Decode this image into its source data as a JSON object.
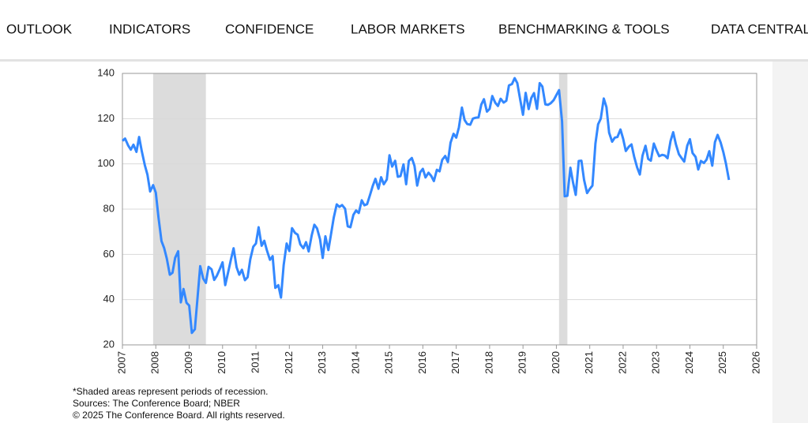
{
  "nav": {
    "items": [
      "OUTLOOK",
      "INDICATORS",
      "CONFIDENCE",
      "LABOR MARKETS",
      "BENCHMARKING & TOOLS",
      "DATA CENTRAL"
    ]
  },
  "chart_data": {
    "type": "line",
    "color": "#3388ff",
    "grid": true,
    "recession_color": "#dcdcdc",
    "recessions": [
      [
        2007.92,
        2009.5
      ],
      [
        2020.08,
        2020.33
      ]
    ],
    "xlim": [
      2007,
      2026
    ],
    "xticks": [
      2007,
      2008,
      2009,
      2010,
      2011,
      2012,
      2013,
      2014,
      2015,
      2016,
      2017,
      2018,
      2019,
      2020,
      2021,
      2022,
      2023,
      2024,
      2025,
      2026
    ],
    "ylim": [
      20,
      140
    ],
    "yticks": [
      20,
      40,
      60,
      80,
      100,
      120,
      140
    ],
    "x": [
      2007.0,
      2007.08,
      2007.17,
      2007.25,
      2007.33,
      2007.42,
      2007.5,
      2007.58,
      2007.67,
      2007.75,
      2007.83,
      2007.92,
      2008.0,
      2008.08,
      2008.17,
      2008.25,
      2008.33,
      2008.42,
      2008.5,
      2008.58,
      2008.67,
      2008.75,
      2008.83,
      2008.92,
      2009.0,
      2009.08,
      2009.17,
      2009.25,
      2009.33,
      2009.42,
      2009.5,
      2009.58,
      2009.67,
      2009.75,
      2009.83,
      2009.92,
      2010.0,
      2010.08,
      2010.17,
      2010.25,
      2010.33,
      2010.42,
      2010.5,
      2010.58,
      2010.67,
      2010.75,
      2010.83,
      2010.92,
      2011.0,
      2011.08,
      2011.17,
      2011.25,
      2011.33,
      2011.42,
      2011.5,
      2011.58,
      2011.67,
      2011.75,
      2011.83,
      2011.92,
      2012.0,
      2012.08,
      2012.17,
      2012.25,
      2012.33,
      2012.42,
      2012.5,
      2012.58,
      2012.67,
      2012.75,
      2012.83,
      2012.92,
      2013.0,
      2013.08,
      2013.17,
      2013.25,
      2013.33,
      2013.42,
      2013.5,
      2013.58,
      2013.67,
      2013.75,
      2013.83,
      2013.92,
      2014.0,
      2014.08,
      2014.17,
      2014.25,
      2014.33,
      2014.42,
      2014.5,
      2014.58,
      2014.67,
      2014.75,
      2014.83,
      2014.92,
      2015.0,
      2015.08,
      2015.17,
      2015.25,
      2015.33,
      2015.42,
      2015.5,
      2015.58,
      2015.67,
      2015.75,
      2015.83,
      2015.92,
      2016.0,
      2016.08,
      2016.17,
      2016.25,
      2016.33,
      2016.42,
      2016.5,
      2016.58,
      2016.67,
      2016.75,
      2016.83,
      2016.92,
      2017.0,
      2017.08,
      2017.17,
      2017.25,
      2017.33,
      2017.42,
      2017.5,
      2017.58,
      2017.67,
      2017.75,
      2017.83,
      2017.92,
      2018.0,
      2018.08,
      2018.17,
      2018.25,
      2018.33,
      2018.42,
      2018.5,
      2018.58,
      2018.67,
      2018.75,
      2018.83,
      2018.92,
      2019.0,
      2019.08,
      2019.17,
      2019.25,
      2019.33,
      2019.42,
      2019.5,
      2019.58,
      2019.67,
      2019.75,
      2019.83,
      2019.92,
      2020.0,
      2020.08,
      2020.17,
      2020.25,
      2020.33,
      2020.42,
      2020.5,
      2020.58,
      2020.67,
      2020.75,
      2020.83,
      2020.92,
      2021.0,
      2021.08,
      2021.17,
      2021.25,
      2021.33,
      2021.42,
      2021.5,
      2021.58,
      2021.67,
      2021.75,
      2021.83,
      2021.92,
      2022.0,
      2022.08,
      2022.17,
      2022.25,
      2022.33,
      2022.42,
      2022.5,
      2022.58,
      2022.67,
      2022.75,
      2022.83,
      2022.92,
      2023.0,
      2023.08,
      2023.17,
      2023.25,
      2023.33,
      2023.42,
      2023.5,
      2023.58,
      2023.67,
      2023.75,
      2023.83,
      2023.92,
      2024.0,
      2024.08,
      2024.17,
      2024.25,
      2024.33,
      2024.42,
      2024.5,
      2024.58,
      2024.67,
      2024.75,
      2024.83,
      2024.92,
      2025.0,
      2025.08,
      2025.17
    ],
    "values": [
      110.2,
      111.2,
      108.2,
      106.3,
      108.5,
      105.3,
      111.9,
      105.6,
      99.5,
      95.2,
      87.8,
      90.6,
      87.3,
      76.4,
      65.9,
      62.8,
      58.1,
      51.0,
      51.9,
      58.5,
      61.4,
      38.8,
      44.7,
      38.6,
      37.4,
      25.3,
      26.9,
      40.8,
      54.8,
      49.3,
      47.4,
      54.5,
      53.4,
      48.7,
      50.6,
      53.6,
      56.5,
      46.4,
      52.3,
      57.7,
      62.7,
      54.3,
      51.0,
      53.2,
      48.6,
      49.9,
      57.8,
      63.4,
      64.8,
      72.0,
      63.8,
      66.0,
      61.7,
      57.6,
      59.2,
      45.2,
      46.4,
      40.9,
      55.2,
      64.8,
      61.5,
      71.6,
      69.5,
      68.7,
      64.4,
      62.7,
      65.4,
      61.3,
      68.4,
      73.1,
      71.5,
      66.7,
      58.4,
      68.0,
      61.9,
      69.0,
      76.2,
      82.1,
      81.0,
      81.8,
      80.2,
      72.4,
      72.0,
      77.5,
      79.4,
      78.3,
      83.9,
      81.7,
      82.2,
      86.4,
      90.3,
      93.4,
      89.0,
      94.1,
      91.0,
      93.1,
      103.8,
      98.8,
      101.4,
      94.3,
      94.6,
      99.8,
      91.0,
      101.3,
      102.6,
      99.1,
      90.4,
      96.3,
      97.8,
      94.0,
      96.1,
      94.7,
      92.4,
      97.4,
      96.7,
      101.8,
      103.5,
      100.8,
      109.4,
      113.3,
      111.6,
      116.1,
      124.9,
      119.4,
      117.6,
      117.3,
      120.0,
      120.4,
      120.6,
      126.2,
      128.6,
      123.1,
      124.3,
      130.0,
      127.0,
      125.6,
      128.8,
      127.1,
      127.9,
      134.7,
      135.3,
      137.9,
      135.7,
      128.1,
      121.7,
      131.4,
      124.2,
      129.2,
      131.3,
      124.3,
      135.7,
      134.2,
      126.3,
      126.1,
      126.8,
      128.2,
      130.4,
      132.6,
      118.8,
      85.7,
      85.9,
      98.3,
      91.7,
      86.3,
      101.3,
      101.4,
      92.9,
      87.1,
      88.9,
      90.4,
      109.0,
      117.5,
      120.0,
      128.9,
      125.1,
      113.8,
      109.8,
      111.6,
      111.9,
      115.2,
      111.1,
      105.7,
      107.6,
      108.6,
      103.2,
      98.4,
      95.3,
      103.6,
      108.0,
      102.2,
      101.4,
      109.0,
      106.0,
      103.4,
      104.0,
      103.7,
      102.5,
      110.1,
      114.0,
      108.7,
      104.3,
      102.6,
      101.0,
      108.0,
      110.9,
      104.8,
      103.1,
      97.5,
      101.3,
      100.4,
      101.9,
      105.6,
      99.2,
      109.6,
      112.8,
      109.5,
      105.3,
      100.1,
      92.9
    ],
    "notes": [
      "*Shaded areas represent periods of recession.",
      "Sources: The Conference Board;  NBER",
      "© 2025 The Conference Board. All rights reserved."
    ]
  }
}
